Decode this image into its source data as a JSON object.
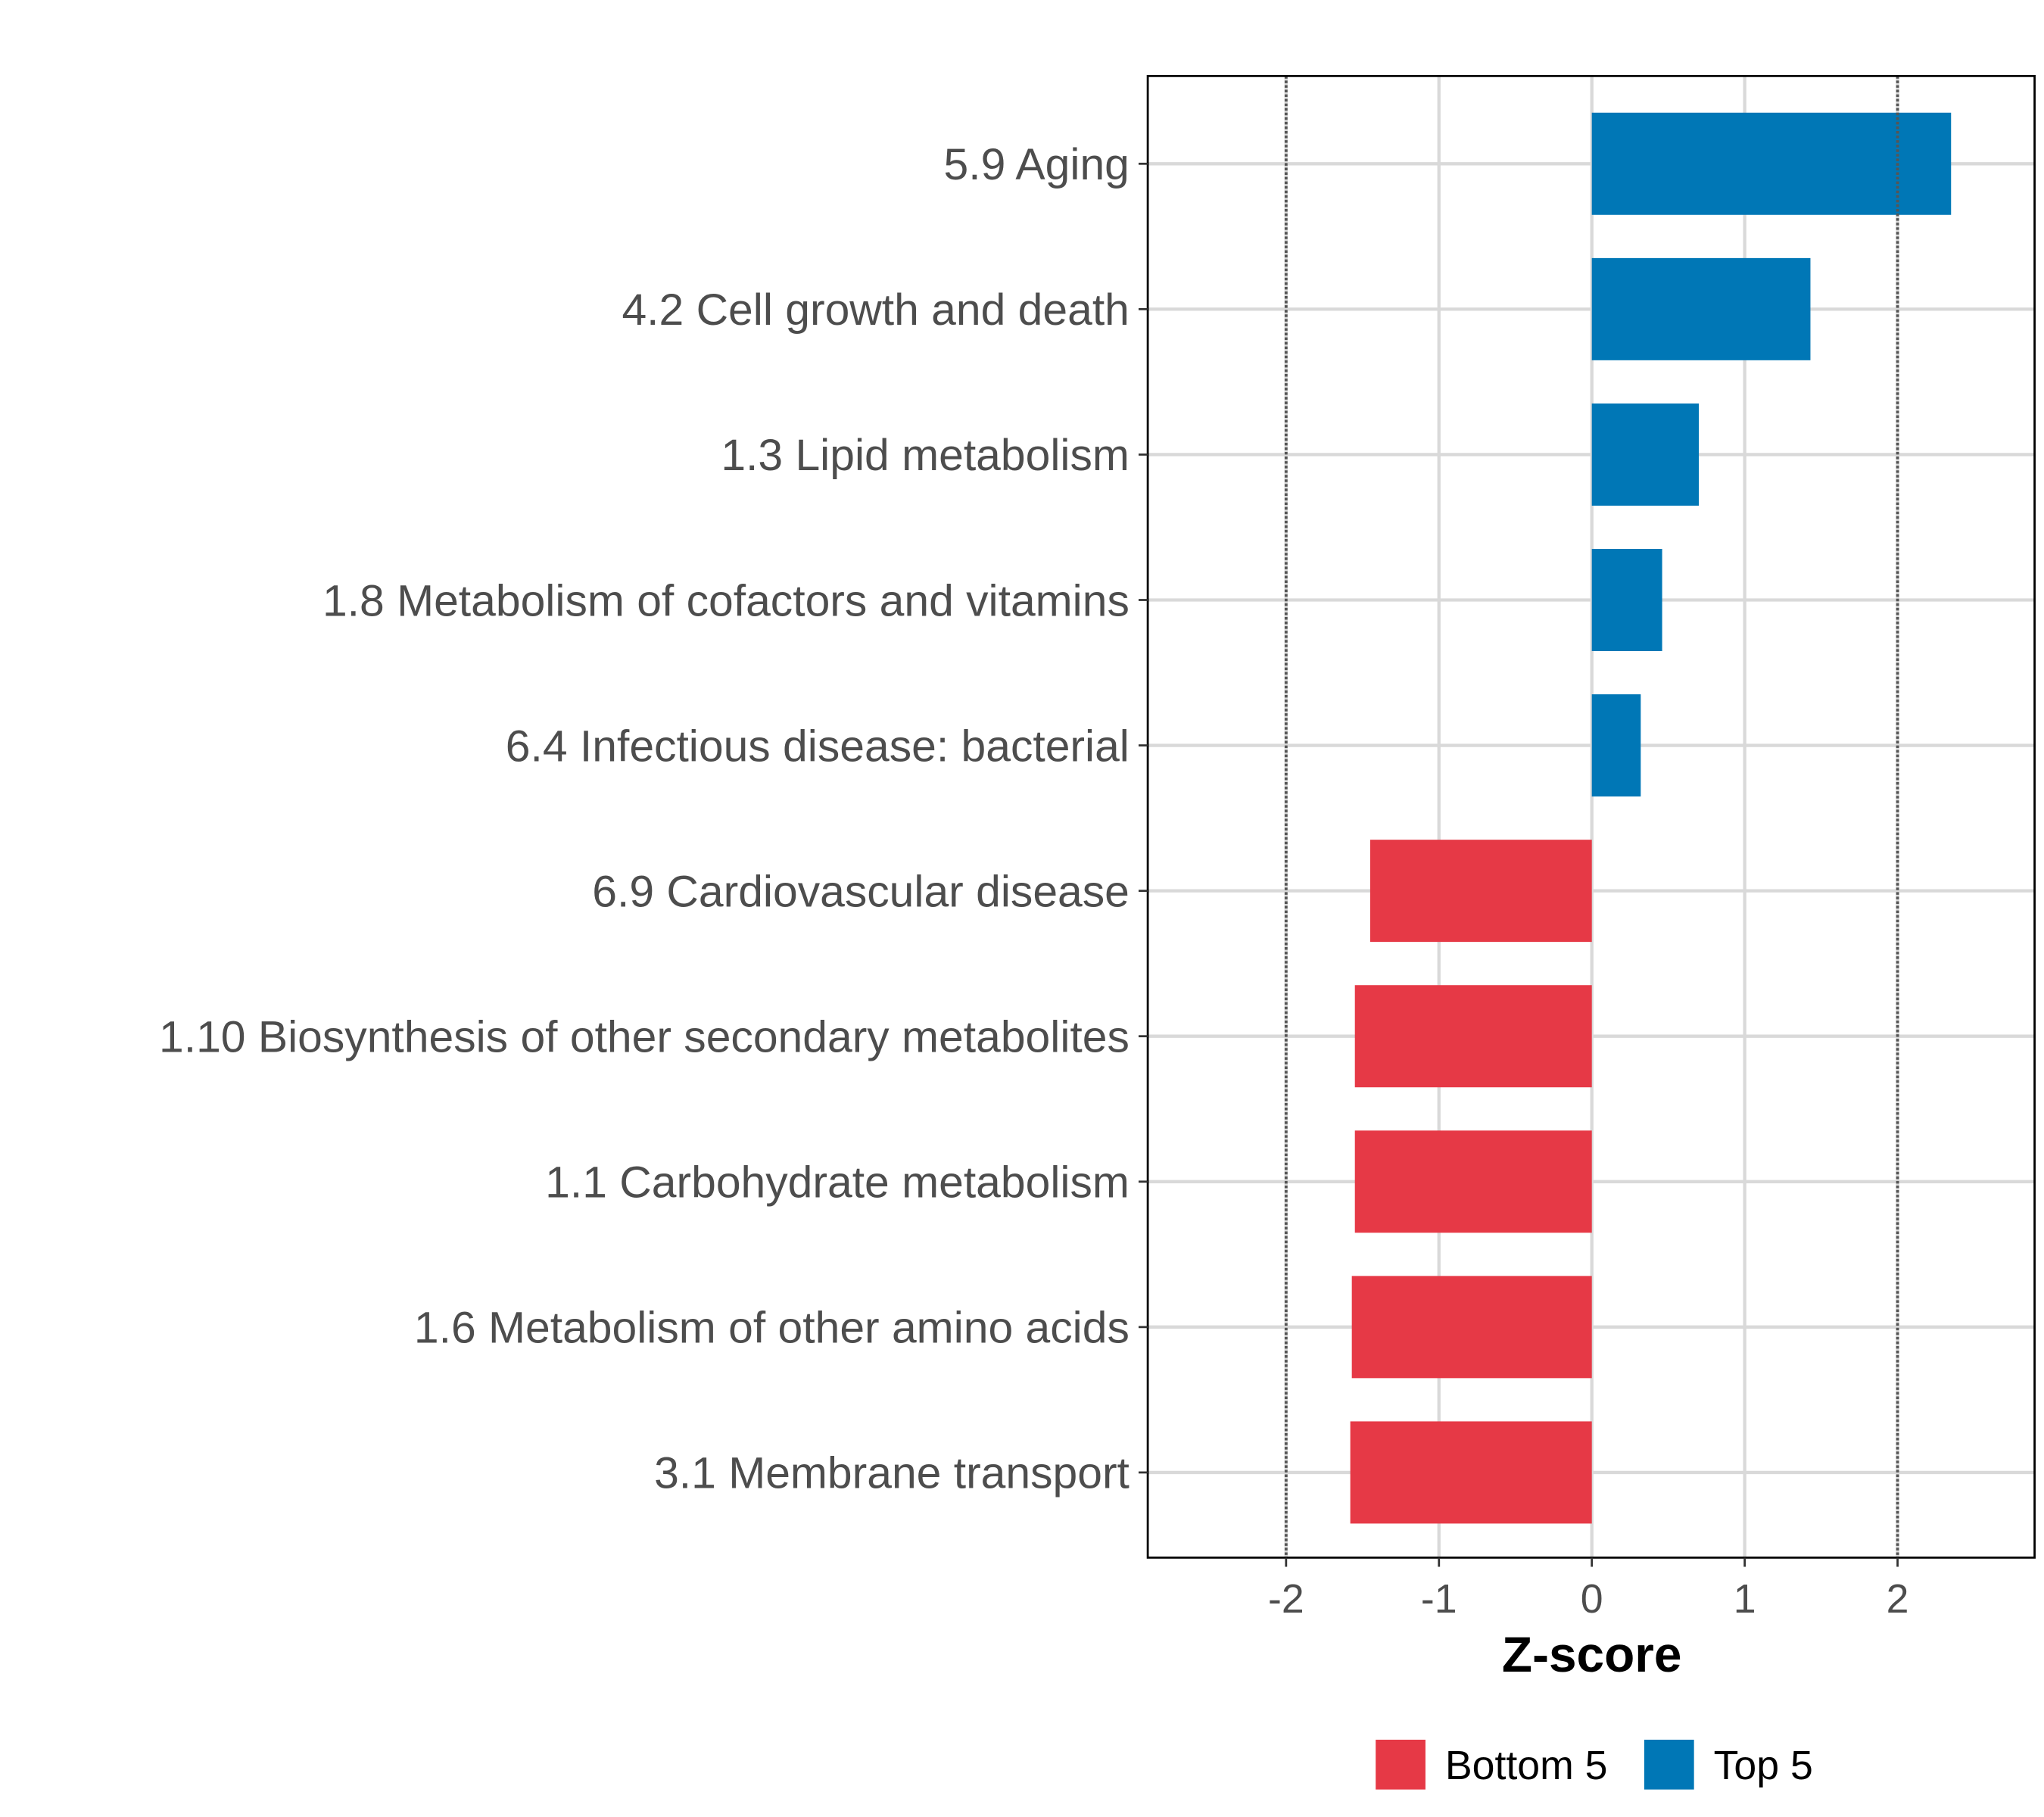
{
  "chart_data": {
    "type": "bar",
    "orientation": "horizontal",
    "title": "",
    "xlabel": "Z-score",
    "ylabel": "",
    "xlim": [
      -2.9,
      2.9
    ],
    "xticks": [
      -2,
      -1,
      0,
      1,
      2
    ],
    "xtick_labels": [
      "-2",
      "-1",
      "0",
      "1",
      "2"
    ],
    "reference_lines": [
      -2,
      2
    ],
    "grid": true,
    "legend_position": "bottom",
    "categories": [
      "5.9 Aging",
      "4.2 Cell growth and death",
      "1.3 Lipid metabolism",
      "1.8 Metabolism of cofactors and vitamins",
      "6.4 Infectious disease: bacterial",
      "6.9 Cardiovascular disease",
      "1.10 Biosynthesis of other secondary metabolites",
      "1.1 Carbohydrate metabolism",
      "1.6 Metabolism of other amino acids",
      "3.1 Membrane transport"
    ],
    "values": [
      2.35,
      1.43,
      0.7,
      0.46,
      0.32,
      -1.45,
      -1.55,
      -1.55,
      -1.57,
      -1.58
    ],
    "groups": [
      "Top 5",
      "Top 5",
      "Top 5",
      "Top 5",
      "Top 5",
      "Bottom 5",
      "Bottom 5",
      "Bottom 5",
      "Bottom 5",
      "Bottom 5"
    ],
    "legend": [
      {
        "name": "Bottom 5",
        "color": "#E63946"
      },
      {
        "name": "Top 5",
        "color": "#0077B6"
      }
    ]
  }
}
